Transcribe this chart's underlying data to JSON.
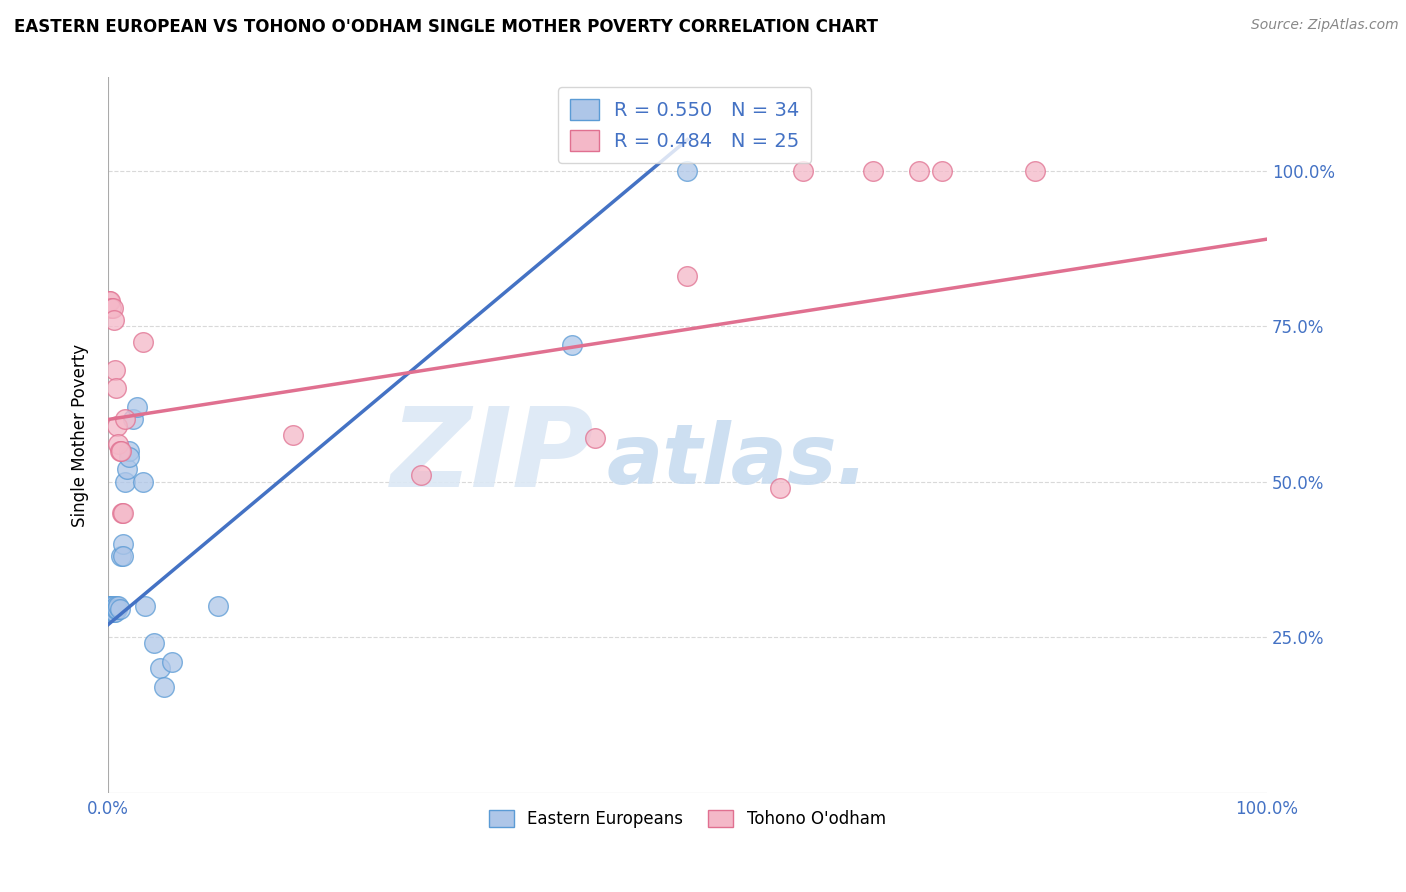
{
  "title": "EASTERN EUROPEAN VS TOHONO O'ODHAM SINGLE MOTHER POVERTY CORRELATION CHART",
  "source": "Source: ZipAtlas.com",
  "ylabel": "Single Mother Poverty",
  "watermark_zip": "ZIP",
  "watermark_atlas": "atlas.",
  "legend_r1": "R = 0.550",
  "legend_n1": "N = 34",
  "legend_r2": "R = 0.484",
  "legend_n2": "N = 25",
  "blue_fill": "#aec6e8",
  "blue_edge": "#5b9bd5",
  "pink_fill": "#f4b8c8",
  "pink_edge": "#e07090",
  "blue_line": "#4472c4",
  "pink_line": "#e07090",
  "label_color": "#4472c4",
  "grid_color": "#d0d0d0",
  "blue_scatter": [
    [
      0.001,
      0.3
    ],
    [
      0.002,
      0.3
    ],
    [
      0.002,
      0.295
    ],
    [
      0.003,
      0.295
    ],
    [
      0.003,
      0.29
    ],
    [
      0.004,
      0.3
    ],
    [
      0.004,
      0.295
    ],
    [
      0.005,
      0.295
    ],
    [
      0.005,
      0.29
    ],
    [
      0.006,
      0.295
    ],
    [
      0.006,
      0.29
    ],
    [
      0.007,
      0.295
    ],
    [
      0.007,
      0.3
    ],
    [
      0.008,
      0.295
    ],
    [
      0.009,
      0.3
    ],
    [
      0.01,
      0.295
    ],
    [
      0.011,
      0.38
    ],
    [
      0.013,
      0.4
    ],
    [
      0.013,
      0.38
    ],
    [
      0.015,
      0.5
    ],
    [
      0.016,
      0.52
    ],
    [
      0.018,
      0.55
    ],
    [
      0.018,
      0.54
    ],
    [
      0.022,
      0.6
    ],
    [
      0.025,
      0.62
    ],
    [
      0.03,
      0.5
    ],
    [
      0.032,
      0.3
    ],
    [
      0.04,
      0.24
    ],
    [
      0.045,
      0.2
    ],
    [
      0.048,
      0.17
    ],
    [
      0.055,
      0.21
    ],
    [
      0.095,
      0.3
    ],
    [
      0.4,
      0.72
    ],
    [
      0.5,
      1.0
    ]
  ],
  "pink_scatter": [
    [
      0.001,
      0.79
    ],
    [
      0.002,
      0.79
    ],
    [
      0.003,
      0.78
    ],
    [
      0.004,
      0.78
    ],
    [
      0.005,
      0.76
    ],
    [
      0.006,
      0.68
    ],
    [
      0.007,
      0.65
    ],
    [
      0.008,
      0.59
    ],
    [
      0.009,
      0.56
    ],
    [
      0.01,
      0.55
    ],
    [
      0.011,
      0.55
    ],
    [
      0.012,
      0.45
    ],
    [
      0.013,
      0.45
    ],
    [
      0.015,
      0.6
    ],
    [
      0.03,
      0.725
    ],
    [
      0.16,
      0.575
    ],
    [
      0.27,
      0.51
    ],
    [
      0.42,
      0.57
    ],
    [
      0.5,
      0.83
    ],
    [
      0.58,
      0.49
    ],
    [
      0.6,
      1.0
    ],
    [
      0.66,
      1.0
    ],
    [
      0.7,
      1.0
    ],
    [
      0.72,
      1.0
    ],
    [
      0.8,
      1.0
    ]
  ],
  "blue_trend_x": [
    0.0,
    0.5
  ],
  "blue_trend_y": [
    0.27,
    1.05
  ],
  "pink_trend_x": [
    0.0,
    1.0
  ],
  "pink_trend_y": [
    0.6,
    0.89
  ],
  "xlim": [
    0.0,
    1.0
  ],
  "ylim": [
    0.0,
    1.15
  ],
  "xticks": [
    0.0,
    0.2,
    0.4,
    0.6,
    0.8,
    1.0
  ],
  "yticks": [
    0.25,
    0.5,
    0.75,
    1.0
  ],
  "figsize": [
    14.06,
    8.92
  ],
  "dpi": 100
}
